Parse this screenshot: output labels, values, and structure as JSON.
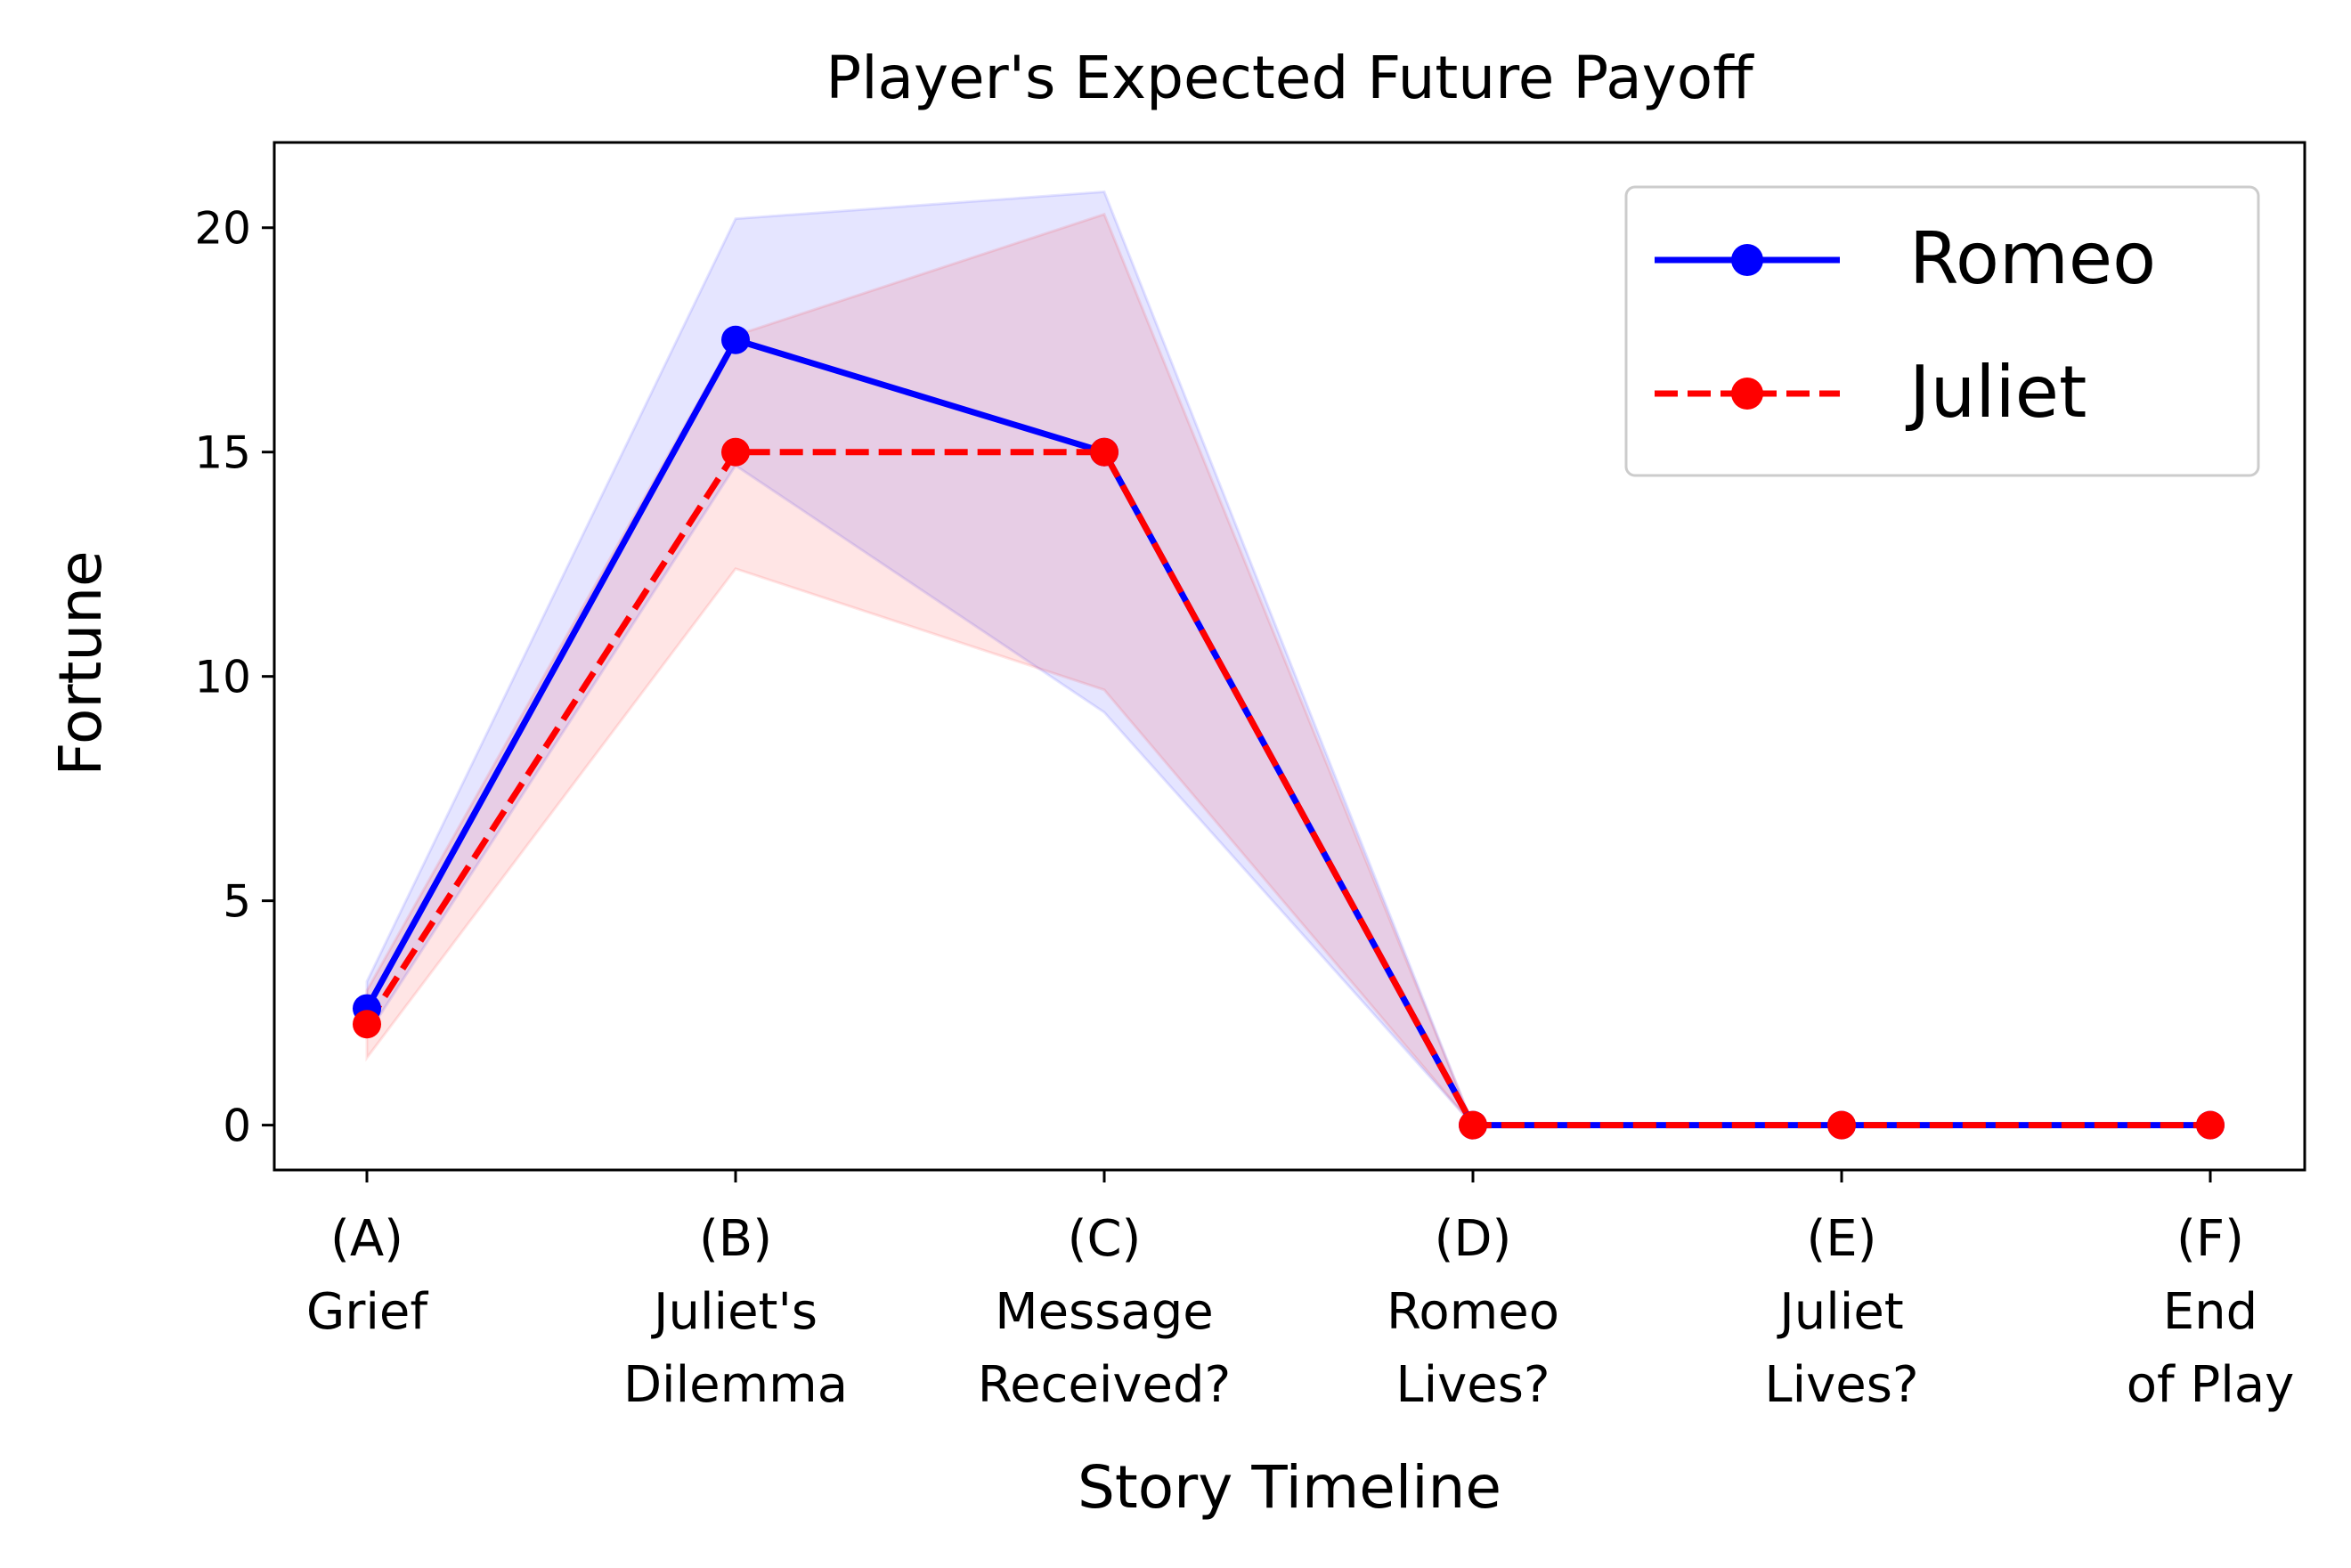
{
  "chart_data": {
    "type": "line",
    "title": "Player's Expected Future Payoff",
    "xlabel": "Story Timeline",
    "ylabel": "Fortune",
    "categories": [
      [
        "(A)",
        "Grief"
      ],
      [
        "(B)",
        "Juliet's",
        "Dilemma"
      ],
      [
        "(C)",
        "Message",
        "Received?"
      ],
      [
        "(D)",
        "Romeo",
        "Lives?"
      ],
      [
        "(E)",
        "Juliet",
        "Lives?"
      ],
      [
        "(F)",
        "End",
        "of Play"
      ]
    ],
    "ylim": [
      -1,
      21.9
    ],
    "yticks": [
      0,
      5,
      10,
      15,
      20
    ],
    "legend_position": "upper right",
    "grid": false,
    "series": [
      {
        "name": "Romeo",
        "color": "#0000ff",
        "style": "solid",
        "values": [
          2.6,
          17.5,
          15,
          0,
          0,
          0
        ],
        "band_lower": [
          2.0,
          14.7,
          9.2,
          0,
          0,
          0
        ],
        "band_upper": [
          3.2,
          20.2,
          20.8,
          0,
          0,
          0
        ]
      },
      {
        "name": "Juliet",
        "color": "#ff0000",
        "style": "dashed",
        "values": [
          2.25,
          15,
          15,
          0,
          0,
          0
        ],
        "band_lower": [
          1.5,
          12.4,
          9.7,
          0,
          0,
          0
        ],
        "band_upper": [
          3.0,
          17.6,
          20.3,
          0,
          0,
          0
        ]
      }
    ]
  }
}
